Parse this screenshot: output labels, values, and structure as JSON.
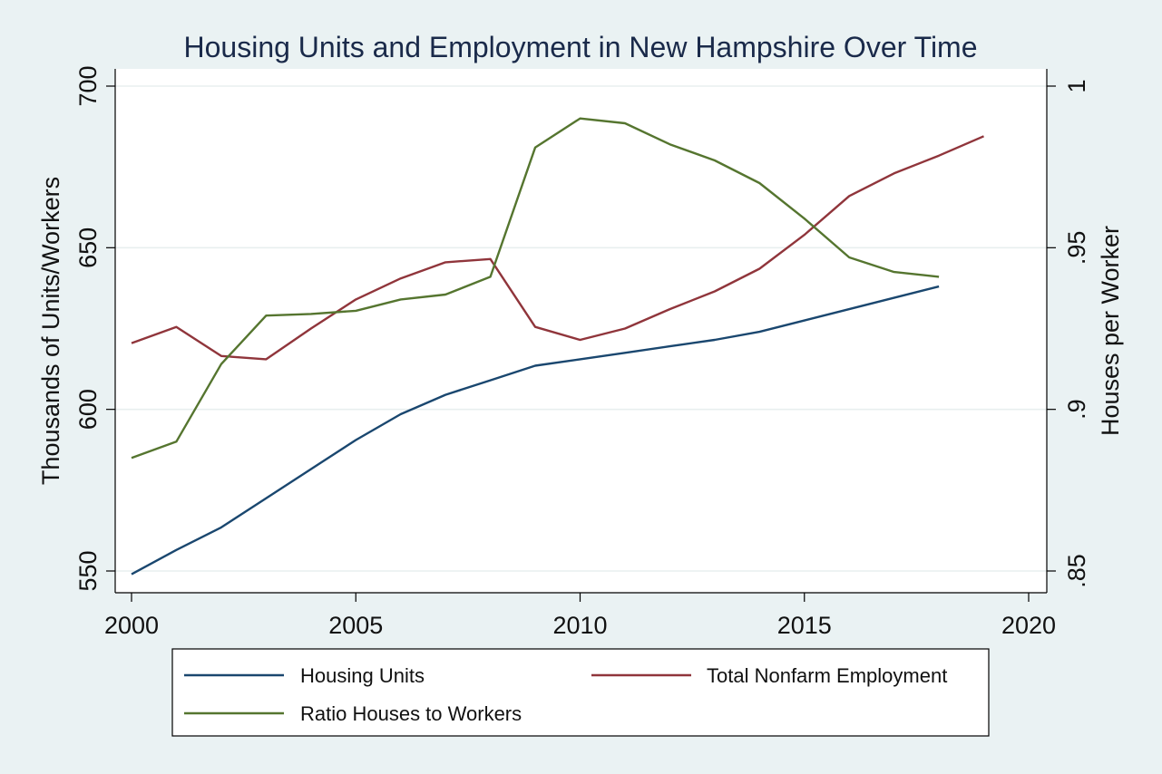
{
  "chart_data": {
    "type": "line",
    "title": "Housing Units and Employment in New Hampshire Over Time",
    "xlabel": "",
    "ylabel": "Thousands of Units/Workers",
    "y2label": "Houses per Worker",
    "xlim": [
      2000,
      2020
    ],
    "ylim": [
      550,
      700
    ],
    "y2lim": [
      0.85,
      1.0
    ],
    "x_ticks": [
      2000,
      2005,
      2010,
      2015,
      2020
    ],
    "y_ticks": [
      550,
      600,
      650,
      700
    ],
    "y_tick_labels": [
      "550",
      "600",
      "650",
      "700"
    ],
    "y2_ticks": [
      0.85,
      0.9,
      0.95,
      1.0
    ],
    "y2_tick_labels": [
      ".85",
      ".9",
      ".95",
      "1"
    ],
    "grid": true,
    "legend_position": "bottom",
    "series": [
      {
        "name": "Housing Units",
        "axis": "left",
        "color": "#1a476f",
        "x": [
          2000,
          2001,
          2002,
          2003,
          2004,
          2005,
          2006,
          2007,
          2008,
          2009,
          2010,
          2011,
          2012,
          2013,
          2014,
          2015,
          2016,
          2017,
          2018
        ],
        "values": [
          549,
          556.5,
          563.5,
          572.5,
          581.5,
          590.5,
          598.5,
          604.5,
          609,
          613.5,
          615.5,
          617.5,
          619.5,
          621.5,
          624,
          627.5,
          631,
          634.5,
          638
        ]
      },
      {
        "name": "Total Nonfarm Employment",
        "axis": "left",
        "color": "#90353b",
        "x": [
          2000,
          2001,
          2002,
          2003,
          2004,
          2005,
          2006,
          2007,
          2008,
          2009,
          2010,
          2011,
          2012,
          2013,
          2014,
          2015,
          2016,
          2017,
          2018,
          2019
        ],
        "values": [
          620.5,
          625.5,
          616.5,
          615.5,
          625,
          634,
          640.5,
          645.5,
          646.5,
          625.5,
          621.5,
          625,
          631,
          636.5,
          643.5,
          654,
          666,
          673,
          678.5,
          684.5
        ]
      },
      {
        "name": "Ratio Houses to Workers",
        "axis": "right",
        "color": "#55752f",
        "x": [
          2000,
          2001,
          2002,
          2003,
          2004,
          2005,
          2006,
          2007,
          2008,
          2009,
          2010,
          2011,
          2012,
          2013,
          2014,
          2015,
          2016,
          2017,
          2018
        ],
        "values": [
          0.885,
          0.89,
          0.914,
          0.929,
          0.9295,
          0.9305,
          0.934,
          0.9355,
          0.941,
          0.981,
          0.99,
          0.9885,
          0.982,
          0.977,
          0.97,
          0.959,
          0.947,
          0.9425,
          0.941
        ]
      }
    ]
  }
}
